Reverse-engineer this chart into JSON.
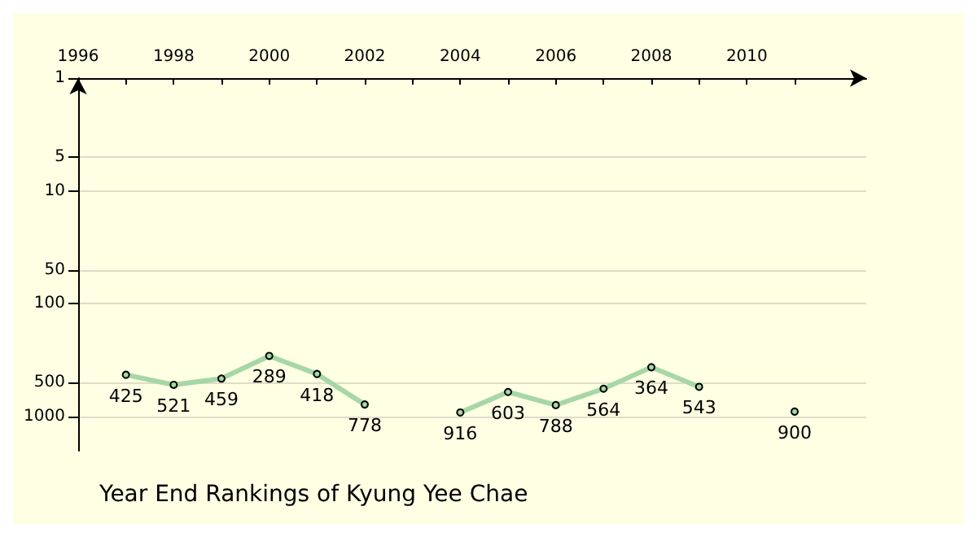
{
  "chart_data": {
    "type": "line",
    "title": "Year End Rankings of Kyung Yee Chae",
    "x": [
      1997,
      1998,
      1999,
      2000,
      2001,
      2002,
      2003,
      2004,
      2005,
      2006,
      2007,
      2008,
      2009,
      2010,
      2011
    ],
    "series": [
      {
        "color": "#a6d7a6",
        "values": [
          425,
          521,
          459,
          289,
          418,
          778,
          null,
          916,
          603,
          788,
          564,
          364,
          543,
          null,
          900
        ]
      }
    ],
    "xlim": [
      1996,
      2012.5
    ],
    "xticks": [
      1996,
      {
        "value": 1997,
        "label": null
      },
      1998,
      {
        "value": 1999,
        "label": null
      },
      2000,
      {
        "value": 2001,
        "label": null
      },
      2002,
      {
        "value": 2003,
        "label": null
      },
      2004,
      {
        "value": 2005,
        "label": null
      },
      2006,
      {
        "value": 2007,
        "label": null
      },
      2008,
      {
        "value": 2009,
        "label": null
      },
      2010,
      {
        "value": 2011,
        "label": null
      }
    ],
    "ylim": [
      2000,
      1
    ],
    "yticks": [
      1,
      5,
      10,
      50,
      100,
      500,
      1000
    ],
    "log": true,
    "grid": "y",
    "data_labels": true,
    "marker": "circle",
    "line_style": "solid"
  }
}
